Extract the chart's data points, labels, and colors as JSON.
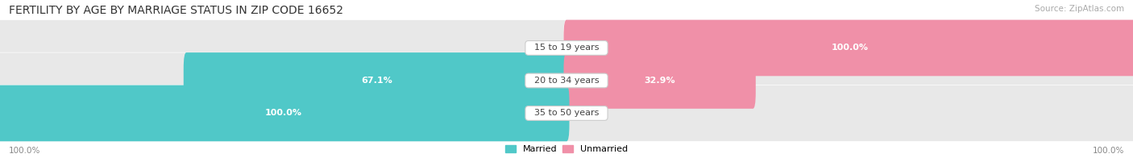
{
  "title": "FERTILITY BY AGE BY MARRIAGE STATUS IN ZIP CODE 16652",
  "source": "Source: ZipAtlas.com",
  "categories": [
    "15 to 19 years",
    "20 to 34 years",
    "35 to 50 years"
  ],
  "married": [
    0.0,
    67.1,
    100.0
  ],
  "unmarried": [
    100.0,
    32.9,
    0.0
  ],
  "married_color": "#50c8c8",
  "unmarried_color": "#f090a8",
  "bar_bg_color": "#e8e8e8",
  "title_fontsize": 10,
  "label_fontsize": 8,
  "cat_fontsize": 8,
  "source_fontsize": 7.5,
  "axis_label_left": "100.0%",
  "axis_label_right": "100.0%",
  "legend_married": "Married",
  "legend_unmarried": "Unmarried",
  "fig_width": 14.06,
  "fig_height": 1.96,
  "dpi": 100
}
